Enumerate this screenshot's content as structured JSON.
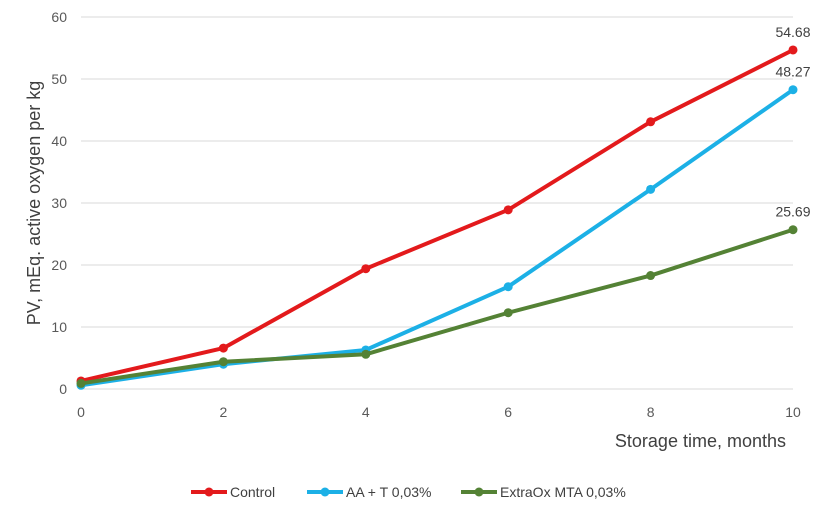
{
  "chart_data": {
    "type": "line",
    "title": "",
    "xlabel": "Storage time, months",
    "ylabel": "PV, mEq. active oxygen per kg",
    "x": [
      0,
      2,
      4,
      6,
      8,
      10
    ],
    "xticks": [
      "0",
      "2",
      "4",
      "6",
      "8",
      "10"
    ],
    "yticks": [
      "0",
      "10",
      "20",
      "30",
      "40",
      "50",
      "60"
    ],
    "ylim": [
      0,
      60
    ],
    "xlim": [
      0,
      10
    ],
    "grid": true,
    "legend_position": "bottom",
    "series": [
      {
        "name": "Control",
        "color": "#e31a1c",
        "values": [
          1.3,
          6.6,
          19.4,
          28.9,
          43.1,
          54.68
        ],
        "end_label": "54.68"
      },
      {
        "name": "AA + T 0,03%",
        "color": "#1cb0e6",
        "values": [
          0.6,
          4.0,
          6.3,
          16.5,
          32.2,
          48.27
        ],
        "end_label": "48.27"
      },
      {
        "name": "ExtraOx MTA 0,03%",
        "color": "#548235",
        "values": [
          0.9,
          4.4,
          5.6,
          12.3,
          18.3,
          25.69
        ],
        "end_label": "25.69"
      }
    ]
  }
}
